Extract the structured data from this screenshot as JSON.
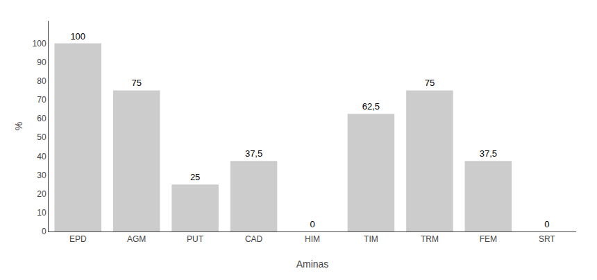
{
  "chart_data": {
    "type": "bar",
    "categories": [
      "EPD",
      "AGM",
      "PUT",
      "CAD",
      "HIM",
      "TIM",
      "TRM",
      "FEM",
      "SRT"
    ],
    "values": [
      100,
      75,
      25,
      37.5,
      0,
      62.5,
      75,
      37.5,
      0
    ],
    "value_labels": [
      "100",
      "75",
      "25",
      "37,5",
      "0",
      "62,5",
      "75",
      "37,5",
      "0"
    ],
    "data_labels": true,
    "color": "#cccccc",
    "xlabel": "Aminas",
    "ylabel": "%",
    "ylim": [
      0,
      112
    ],
    "yticks": [
      0,
      10,
      20,
      30,
      40,
      50,
      60,
      70,
      80,
      90,
      100
    ],
    "grid": false
  }
}
